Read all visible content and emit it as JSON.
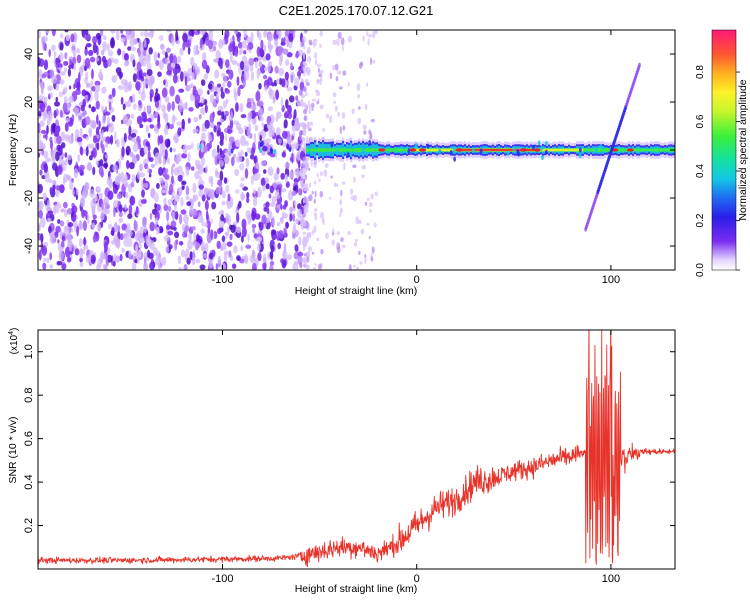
{
  "title": "C2E1.2025.170.07.12.G21",
  "chart_data": [
    {
      "type": "heatmap",
      "xlabel": "Height of straight line (km)",
      "ylabel": "Frequency (Hz)",
      "xlim": [
        -195,
        133
      ],
      "ylim": [
        -50,
        50
      ],
      "xticks": [
        -100,
        0,
        100
      ],
      "xtick_labels": [
        "-100",
        "0",
        "100"
      ],
      "yticks": [
        -40,
        -20,
        0,
        20,
        40
      ],
      "ytick_labels": [
        "-40",
        "-20",
        "0",
        "20",
        "40"
      ],
      "colorbar": {
        "label": "Normalized spectral amplitude",
        "range": [
          0,
          0.97
        ],
        "ticks": [
          0.0,
          0.2,
          0.4,
          0.6,
          0.8
        ],
        "tick_labels": [
          "0.0",
          "0.2",
          "0.4",
          "0.6",
          "0.8"
        ],
        "colormap": "rainbow-purple-to-red"
      },
      "features": {
        "noise_region_x": [
          -195,
          -58
        ],
        "sparse_noise_region_x": [
          -58,
          -22
        ],
        "ridge_frequency_hz": 0,
        "ridge_x": [
          -57,
          133
        ],
        "ridge_peak_x": [
          20,
          60
        ],
        "diagonal_line": {
          "x": [
            87,
            115
          ],
          "y": [
            -33,
            36
          ]
        }
      }
    },
    {
      "type": "line",
      "xlabel": "Height of straight line (km)",
      "ylabel": "SNR (10 * v/v)",
      "yscale_note": "(x10^4)",
      "xlim": [
        -195,
        133
      ],
      "ylim": [
        0,
        1.1
      ],
      "xticks": [
        -100,
        0,
        100
      ],
      "xtick_labels": [
        "-100",
        "0",
        "100"
      ],
      "yticks": [
        0.2,
        0.4,
        0.6,
        0.8,
        1.0
      ],
      "ytick_labels": [
        "0.2",
        "0.4",
        "0.6",
        "0.8",
        "1.0"
      ],
      "series": [
        {
          "color": "#e8332a",
          "x": [
            -195,
            -150,
            -100,
            -70,
            -60,
            -50,
            -40,
            -30,
            -20,
            -10,
            0,
            10,
            20,
            30,
            40,
            50,
            60,
            70,
            80,
            85,
            90,
            95,
            100,
            105,
            110,
            115,
            120,
            125,
            133
          ],
          "y": [
            0.04,
            0.04,
            0.045,
            0.05,
            0.06,
            0.08,
            0.1,
            0.1,
            0.07,
            0.12,
            0.2,
            0.28,
            0.32,
            0.4,
            0.42,
            0.45,
            0.47,
            0.5,
            0.52,
            0.53,
            0.54,
            0.6,
            0.55,
            0.5,
            0.53,
            0.54,
            0.54,
            0.54,
            0.54
          ]
        }
      ]
    }
  ]
}
